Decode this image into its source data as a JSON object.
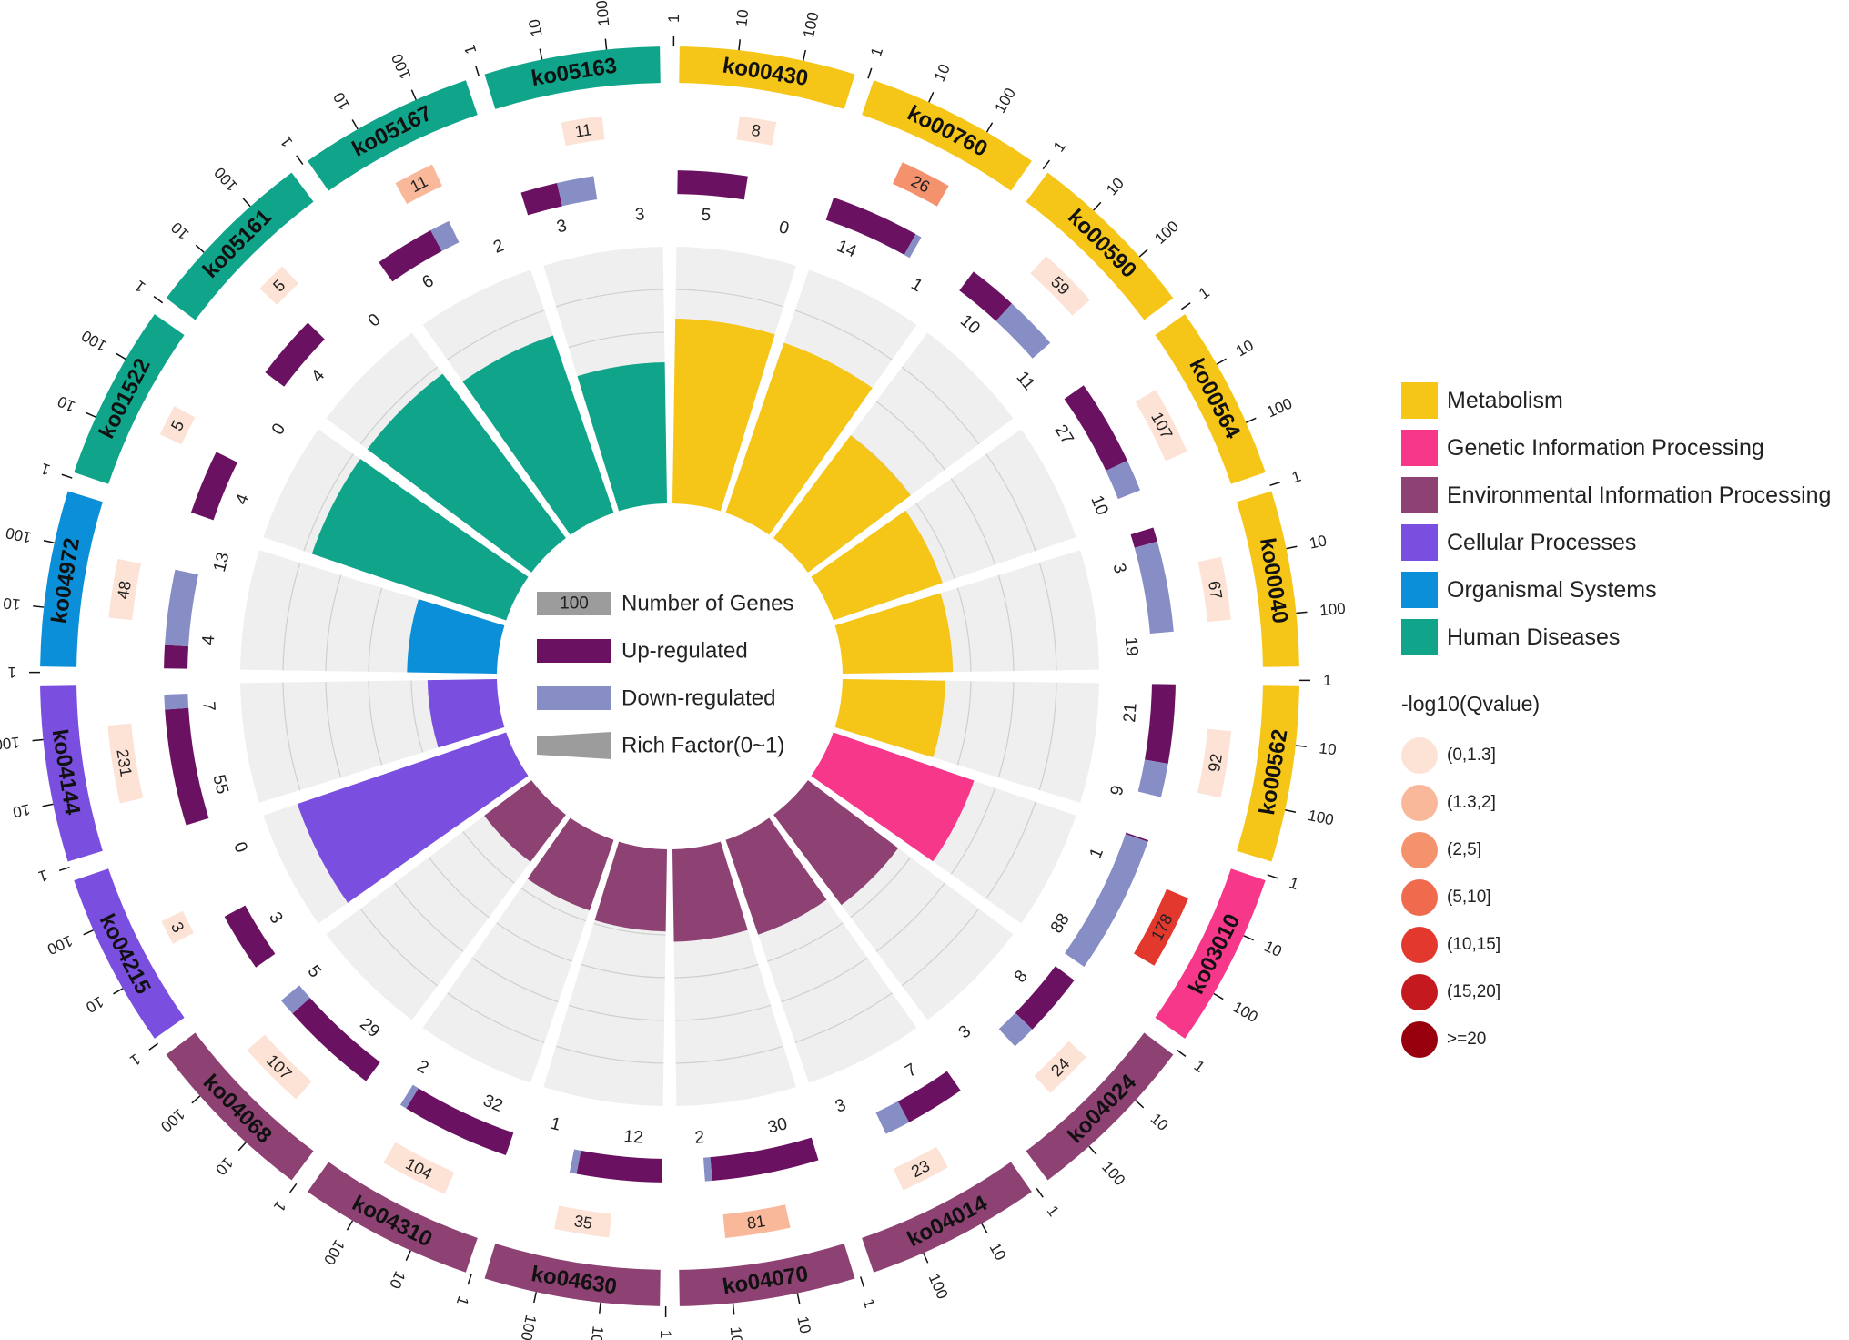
{
  "chart_data": {
    "type": "circos-enrichment",
    "categories": [
      {
        "name": "Metabolism",
        "color": "#F5C518"
      },
      {
        "name": "Genetic Information Processing",
        "color": "#F7378A"
      },
      {
        "name": "Environmental Information Processing",
        "color": "#8E4173"
      },
      {
        "name": "Cellular Processes",
        "color": "#7A4FDF"
      },
      {
        "name": "Organismal Systems",
        "color": "#0A8FD8"
      },
      {
        "name": "Human Diseases",
        "color": "#10A58A"
      }
    ],
    "terms": [
      {
        "id": "ko00430",
        "category": 0,
        "genes": 8,
        "qclass": 0,
        "up": 5,
        "down": 0,
        "rich": 0.72
      },
      {
        "id": "ko00760",
        "category": 0,
        "genes": 26,
        "qclass": 2,
        "up": 14,
        "down": 1,
        "rich": 0.7
      },
      {
        "id": "ko00590",
        "category": 0,
        "genes": 59,
        "qclass": 0,
        "up": 10,
        "down": 11,
        "rich": 0.5
      },
      {
        "id": "ko00564",
        "category": 0,
        "genes": 107,
        "qclass": 0,
        "up": 27,
        "down": 10,
        "rich": 0.45
      },
      {
        "id": "ko00040",
        "category": 0,
        "genes": 67,
        "qclass": 0,
        "up": 3,
        "down": 19,
        "rich": 0.43
      },
      {
        "id": "ko00562",
        "category": 0,
        "genes": 92,
        "qclass": 0,
        "up": 21,
        "down": 9,
        "rich": 0.4
      },
      {
        "id": "ko03010",
        "category": 1,
        "genes": 178,
        "qclass": 4,
        "up": 1,
        "down": 88,
        "rich": 0.58
      },
      {
        "id": "ko04024",
        "category": 2,
        "genes": 24,
        "qclass": 0,
        "up": 8,
        "down": 3,
        "rich": 0.44
      },
      {
        "id": "ko04014",
        "category": 2,
        "genes": 23,
        "qclass": 0,
        "up": 7,
        "down": 3,
        "rich": 0.39
      },
      {
        "id": "ko04070",
        "category": 2,
        "genes": 81,
        "qclass": 1,
        "up": 30,
        "down": 2,
        "rich": 0.36
      },
      {
        "id": "ko04630",
        "category": 2,
        "genes": 35,
        "qclass": 0,
        "up": 12,
        "down": 1,
        "rich": 0.32
      },
      {
        "id": "ko04310",
        "category": 2,
        "genes": 104,
        "qclass": 0,
        "up": 32,
        "down": 2,
        "rich": 0.29
      },
      {
        "id": "ko04068",
        "category": 2,
        "genes": 107,
        "qclass": 0,
        "up": 29,
        "down": 5,
        "rich": 0.23
      },
      {
        "id": "ko04215",
        "category": 3,
        "genes": 3,
        "qclass": 0,
        "up": 3,
        "down": 0,
        "rich": 0.86
      },
      {
        "id": "ko04144",
        "category": 3,
        "genes": 231,
        "qclass": 0,
        "up": 55,
        "down": 7,
        "rich": 0.27
      },
      {
        "id": "ko04972",
        "category": 4,
        "genes": 48,
        "qclass": 0,
        "up": 4,
        "down": 13,
        "rich": 0.35
      },
      {
        "id": "ko01522",
        "category": 5,
        "genes": 5,
        "qclass": 0,
        "up": 4,
        "down": 0,
        "rich": 0.8
      },
      {
        "id": "ko05161",
        "category": 5,
        "genes": 5,
        "qclass": 0,
        "up": 4,
        "down": 0,
        "rich": 0.8
      },
      {
        "id": "ko05167",
        "category": 5,
        "genes": 11,
        "qclass": 1,
        "up": 6,
        "down": 2,
        "rich": 0.73
      },
      {
        "id": "ko05163",
        "category": 5,
        "genes": 11,
        "qclass": 0,
        "up": 3,
        "down": 3,
        "rich": 0.55
      }
    ],
    "scale_ticks": [
      "1",
      "10",
      "100"
    ],
    "center_legend": [
      {
        "label": "Number of Genes",
        "sample": "100",
        "kind": "genes",
        "color": "#9C9C9C"
      },
      {
        "label": "Up-regulated",
        "kind": "up",
        "color": "#6A1261"
      },
      {
        "label": "Down-regulated",
        "kind": "down",
        "color": "#878DC5"
      },
      {
        "label": "Rich Factor(0~1)",
        "kind": "rich",
        "color": "#9C9C9C"
      }
    ],
    "qvalue_title": "-log10(Qvalue)",
    "qvalue_legend": [
      {
        "label": "(0,1.3]",
        "color": "#FDE2D6"
      },
      {
        "label": "(1.3,2]",
        "color": "#F9B89A"
      },
      {
        "label": "(2,5]",
        "color": "#F5926E"
      },
      {
        "label": "(5,10]",
        "color": "#F06A4E"
      },
      {
        "label": "(10,15]",
        "color": "#E2382E"
      },
      {
        "label": "(15,20]",
        "color": "#C41A1F"
      },
      {
        "label": ">=20",
        "color": "#99000D"
      }
    ]
  }
}
